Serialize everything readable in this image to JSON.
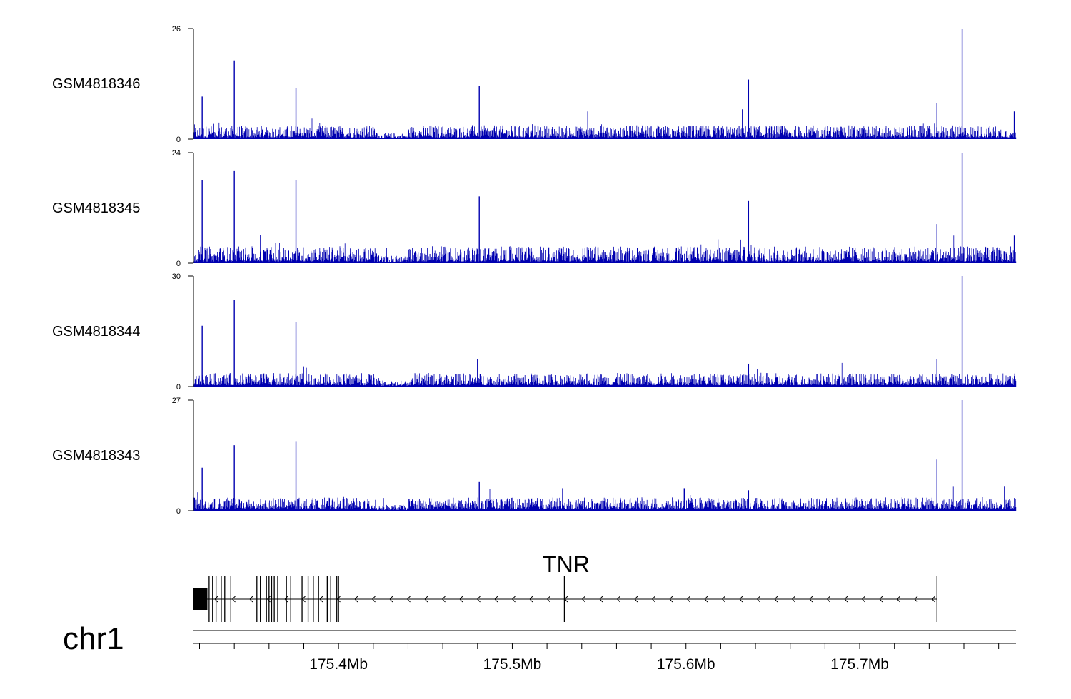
{
  "chart_data": {
    "type": "genome-browser",
    "chromosome": "chr1",
    "xlim": [
      175.3165,
      175.79
    ],
    "x_unit": "Mb",
    "x_ticks": [
      {
        "value": 175.4,
        "label": "175.4Mb"
      },
      {
        "value": 175.5,
        "label": "175.5Mb"
      },
      {
        "value": 175.6,
        "label": "175.6Mb"
      },
      {
        "value": 175.7,
        "label": "175.7Mb"
      }
    ],
    "x_minor_step": 0.02,
    "color": "#0000b0",
    "tracks": [
      {
        "name": "GSM4818346",
        "ymin": 0,
        "ymax": 26,
        "min_label": "0",
        "max_label": "26",
        "baseline": 1.5,
        "noise": 1.3,
        "peaks": [
          [
            175.3215,
            10
          ],
          [
            175.34,
            18.5
          ],
          [
            175.3755,
            12
          ],
          [
            175.481,
            12.5
          ],
          [
            175.5435,
            6.5
          ],
          [
            175.6325,
            7
          ],
          [
            175.636,
            14
          ],
          [
            175.7445,
            8.5
          ],
          [
            175.759,
            26
          ],
          [
            175.789,
            6.5
          ]
        ]
      },
      {
        "name": "GSM4818345",
        "ymin": 0,
        "ymax": 24,
        "min_label": "0",
        "max_label": "24",
        "baseline": 1.5,
        "noise": 1.5,
        "peaks": [
          [
            175.3215,
            18
          ],
          [
            175.34,
            20
          ],
          [
            175.3755,
            18
          ],
          [
            175.481,
            14.5
          ],
          [
            175.636,
            13.5
          ],
          [
            175.7445,
            8.5
          ],
          [
            175.759,
            24
          ],
          [
            175.789,
            6
          ]
        ]
      },
      {
        "name": "GSM4818344",
        "ymin": 0,
        "ymax": 30,
        "min_label": "0",
        "max_label": "30",
        "baseline": 1.5,
        "noise": 1.5,
        "peaks": [
          [
            175.3215,
            16.5
          ],
          [
            175.34,
            23.5
          ],
          [
            175.3755,
            17.5
          ],
          [
            175.48,
            7.5
          ],
          [
            175.636,
            6.2
          ],
          [
            175.7445,
            7.5
          ],
          [
            175.759,
            30
          ]
        ]
      },
      {
        "name": "GSM4818343",
        "ymin": 0,
        "ymax": 27,
        "min_label": "0",
        "max_label": "27",
        "baseline": 1.5,
        "noise": 1.3,
        "peaks": [
          [
            175.319,
            4.5
          ],
          [
            175.3215,
            10.5
          ],
          [
            175.34,
            16
          ],
          [
            175.3755,
            17
          ],
          [
            175.481,
            7
          ],
          [
            175.529,
            5.5
          ],
          [
            175.599,
            5.5
          ],
          [
            175.636,
            5
          ],
          [
            175.7445,
            12.5
          ],
          [
            175.759,
            27
          ]
        ]
      }
    ],
    "gene": {
      "name": "TNR",
      "strand": "-",
      "start": 175.3165,
      "end": 175.7445,
      "utr": [
        175.3165,
        175.3245
      ],
      "exons": [
        175.3255,
        175.3275,
        175.3295,
        175.3325,
        175.3345,
        175.338,
        175.353,
        175.355,
        175.3585,
        175.36,
        175.3615,
        175.363,
        175.365,
        175.37,
        175.3725,
        175.379,
        175.3825,
        175.3855,
        175.3885,
        175.3935,
        175.3955,
        175.399,
        175.4,
        175.53,
        175.7445
      ]
    }
  }
}
